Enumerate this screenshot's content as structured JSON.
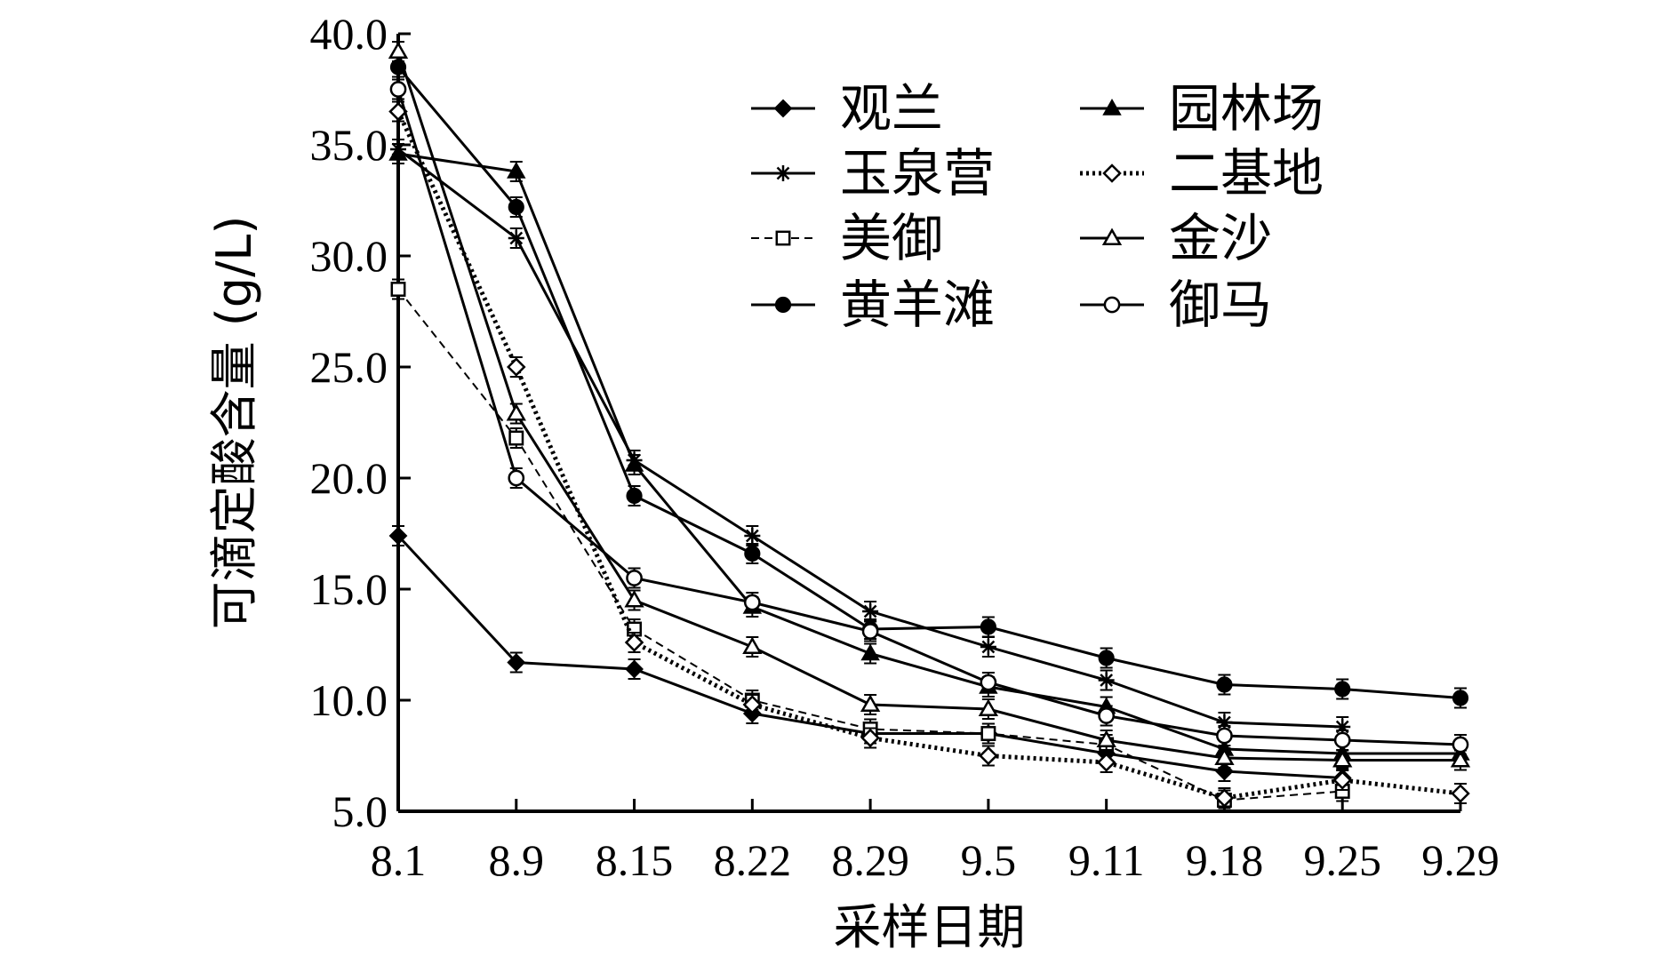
{
  "chart_data": {
    "type": "line",
    "xlabel": "采样日期",
    "ylabel": "可滴定酸含量 (g/L)",
    "categories": [
      "8.1",
      "8.9",
      "8.15",
      "8.22",
      "8.29",
      "9.5",
      "9.11",
      "9.18",
      "9.25",
      "9.29"
    ],
    "ylim": [
      5.0,
      40.0
    ],
    "yticks": [
      "5.0",
      "10.0",
      "15.0",
      "20.0",
      "25.0",
      "30.0",
      "35.0",
      "40.0"
    ],
    "grid": false,
    "legend_position": "top-right",
    "series": [
      {
        "name": "观兰",
        "marker": "diamond-filled",
        "dash": "solid",
        "values": [
          17.4,
          11.7,
          11.4,
          9.4,
          8.5,
          8.5,
          7.6,
          6.8,
          6.5,
          null
        ]
      },
      {
        "name": "玉泉营",
        "marker": "star",
        "dash": "solid",
        "values": [
          34.8,
          30.8,
          20.8,
          17.4,
          14.0,
          12.4,
          10.9,
          9.0,
          8.8,
          null
        ]
      },
      {
        "name": "美御",
        "marker": "square-open",
        "dash": "dashed",
        "values": [
          28.5,
          21.8,
          13.2,
          10.0,
          8.7,
          8.5,
          8.0,
          5.5,
          5.9,
          null
        ]
      },
      {
        "name": "黄羊滩",
        "marker": "circle-filled",
        "dash": "solid",
        "values": [
          38.5,
          32.2,
          19.2,
          16.6,
          13.2,
          13.3,
          11.9,
          10.7,
          10.5,
          10.1
        ]
      },
      {
        "name": "园林场",
        "marker": "triangle-filled",
        "dash": "solid",
        "values": [
          34.6,
          33.8,
          20.6,
          14.2,
          12.1,
          10.6,
          9.7,
          7.8,
          7.6,
          7.6
        ]
      },
      {
        "name": "二基地",
        "marker": "diamond-open",
        "dash": "dotted",
        "values": [
          36.5,
          25.0,
          12.6,
          9.8,
          8.3,
          7.5,
          7.2,
          5.6,
          6.4,
          5.8
        ]
      },
      {
        "name": "金沙",
        "marker": "triangle-open",
        "dash": "solid",
        "values": [
          39.2,
          22.9,
          14.5,
          12.4,
          9.8,
          9.6,
          8.2,
          7.4,
          7.3,
          7.3
        ]
      },
      {
        "name": "御马",
        "marker": "circle-open",
        "dash": "solid",
        "values": [
          37.5,
          20.0,
          15.5,
          14.4,
          13.1,
          10.8,
          9.3,
          8.4,
          8.2,
          8.0
        ]
      }
    ]
  }
}
